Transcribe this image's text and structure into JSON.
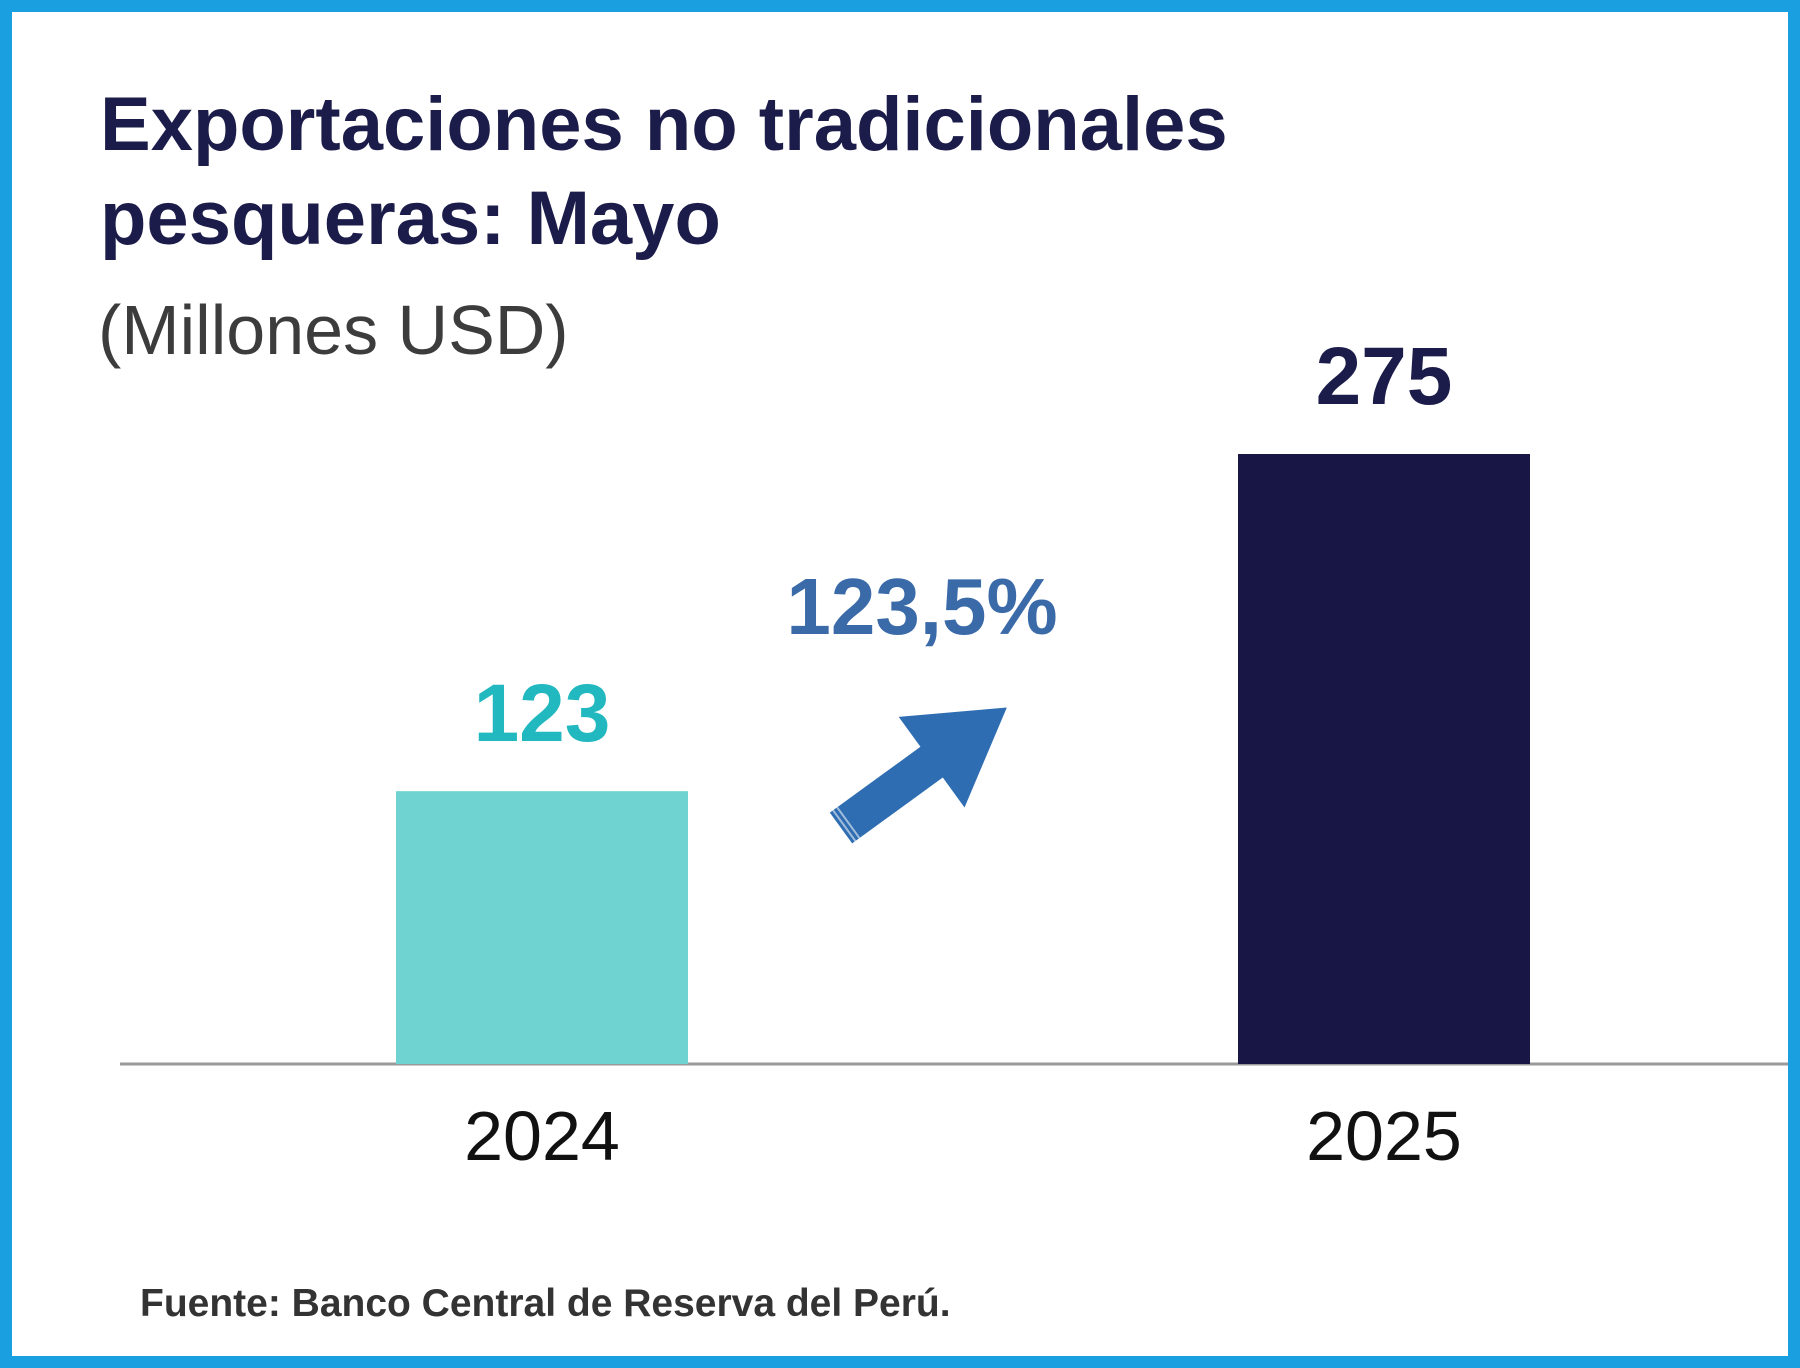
{
  "colors": {
    "frame": "#1aa0e0",
    "title": "#1c1c4a",
    "bar_2024": "#6fd3d1",
    "bar_2025": "#181645",
    "label_2024": "#21b8bf",
    "label_2025": "#1c1c4a",
    "growth": "#3a6aa8",
    "arrow": "#2f6db2",
    "axis": "#9a9a9a"
  },
  "growth": {
    "label": "123,5%",
    "icon": "arrow-up-right-icon"
  },
  "source": "Fuente: Banco Central de Reserva del Perú.",
  "chart_data": {
    "type": "bar",
    "title_lines": [
      "Exportaciones no tradicionales",
      "pesqueras: Mayo"
    ],
    "subtitle": "(Millones USD)",
    "xlabel": "",
    "ylabel": "",
    "categories": [
      "2024",
      "2025"
    ],
    "values": [
      123,
      275
    ],
    "value_labels": [
      "123",
      "275"
    ],
    "grid": false,
    "legend": "none"
  }
}
